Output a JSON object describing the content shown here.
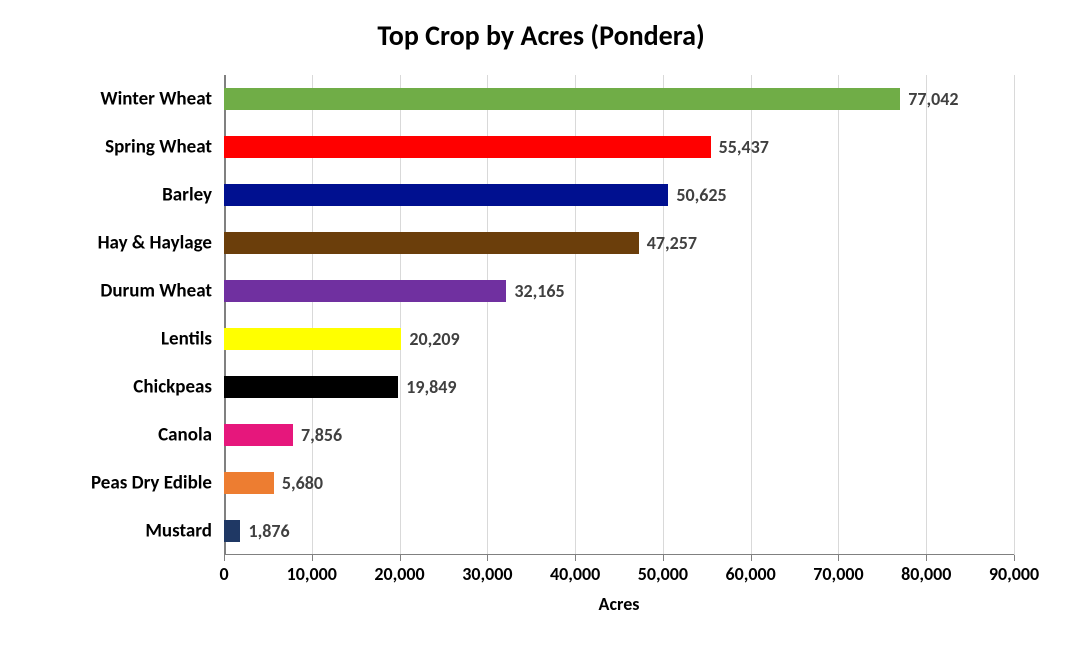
{
  "chart": {
    "type": "bar-horizontal",
    "title": "Top Crop by Acres (Pondera)",
    "title_fontsize": 28,
    "title_color": "#000000",
    "background_color": "#ffffff",
    "xlabel": "Acres",
    "label_fontsize": 18,
    "label_color": "#000000",
    "xlim": [
      0,
      90000
    ],
    "xtick_step": 10000,
    "xtick_labels": [
      "0",
      "10,000",
      "20,000",
      "30,000",
      "40,000",
      "50,000",
      "60,000",
      "70,000",
      "80,000",
      "90,000"
    ],
    "tick_fontsize": 18,
    "grid_color": "#d9d9d9",
    "axis_color": "#808080",
    "bar_height_ratio": 0.46,
    "value_label_fontsize": 18,
    "value_label_color": "#404040",
    "category_fontsize": 19,
    "series": [
      {
        "category": "Winter Wheat",
        "value": 77042,
        "value_label": "77,042",
        "color": "#70ad47"
      },
      {
        "category": "Spring Wheat",
        "value": 55437,
        "value_label": "55,437",
        "color": "#ff0000"
      },
      {
        "category": "Barley",
        "value": 50625,
        "value_label": "50,625",
        "color": "#001090"
      },
      {
        "category": "Hay & Haylage",
        "value": 47257,
        "value_label": "47,257",
        "color": "#6b3e0b"
      },
      {
        "category": "Durum Wheat",
        "value": 32165,
        "value_label": "32,165",
        "color": "#7030a0"
      },
      {
        "category": "Lentils",
        "value": 20209,
        "value_label": "20,209",
        "color": "#ffff00"
      },
      {
        "category": "Chickpeas",
        "value": 19849,
        "value_label": "19,849",
        "color": "#000000"
      },
      {
        "category": "Canola",
        "value": 7856,
        "value_label": "7,856",
        "color": "#e6177c"
      },
      {
        "category": "Peas Dry Edible",
        "value": 5680,
        "value_label": "5,680",
        "color": "#ed7d31"
      },
      {
        "category": "Mustard",
        "value": 1876,
        "value_label": "1,876",
        "color": "#1f3864"
      }
    ]
  }
}
